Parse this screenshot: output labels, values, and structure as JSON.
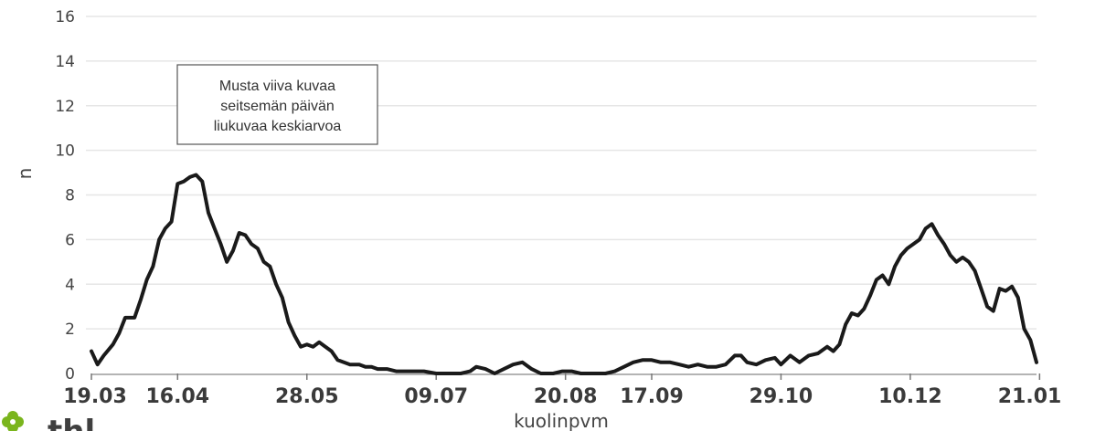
{
  "chart_data": {
    "type": "line",
    "title": "",
    "xlabel": "kuolinpvm",
    "ylabel": "n",
    "ylim": [
      0,
      16
    ],
    "yticks": [
      0,
      2,
      4,
      6,
      8,
      10,
      12,
      14,
      16
    ],
    "grid": true,
    "x_tick_labels": [
      "19.03",
      "16.04",
      "28.05",
      "09.07",
      "20.08",
      "17.09",
      "29.10",
      "10.12",
      "21.01"
    ],
    "annotation": [
      "Musta viiva kuvaa",
      "seitsemän päivän",
      "liukuvaa keskiarvoa"
    ],
    "logo_text": "thl",
    "series": [
      {
        "line_color": "#1a1a1a",
        "points": [
          [
            "19.03",
            1.0
          ],
          [
            "21.03",
            0.4
          ],
          [
            "23.03",
            0.8
          ],
          [
            "26.03",
            1.3
          ],
          [
            "28.03",
            1.8
          ],
          [
            "30.03",
            2.5
          ],
          [
            "02.04",
            2.5
          ],
          [
            "04.04",
            3.3
          ],
          [
            "06.04",
            4.2
          ],
          [
            "08.04",
            4.8
          ],
          [
            "10.04",
            6.0
          ],
          [
            "12.04",
            6.5
          ],
          [
            "14.04",
            6.8
          ],
          [
            "16.04",
            8.5
          ],
          [
            "18.04",
            8.6
          ],
          [
            "20.04",
            8.8
          ],
          [
            "22.04",
            8.9
          ],
          [
            "24.04",
            8.6
          ],
          [
            "26.04",
            7.2
          ],
          [
            "28.04",
            6.5
          ],
          [
            "30.04",
            5.8
          ],
          [
            "02.05",
            5.0
          ],
          [
            "04.05",
            5.5
          ],
          [
            "06.05",
            6.3
          ],
          [
            "08.05",
            6.2
          ],
          [
            "10.05",
            5.8
          ],
          [
            "12.05",
            5.6
          ],
          [
            "14.05",
            5.0
          ],
          [
            "16.05",
            4.8
          ],
          [
            "18.05",
            4.0
          ],
          [
            "20.05",
            3.4
          ],
          [
            "22.05",
            2.3
          ],
          [
            "24.05",
            1.7
          ],
          [
            "26.05",
            1.2
          ],
          [
            "28.05",
            1.3
          ],
          [
            "30.05",
            1.2
          ],
          [
            "01.06",
            1.4
          ],
          [
            "03.06",
            1.2
          ],
          [
            "05.06",
            1.0
          ],
          [
            "07.06",
            0.6
          ],
          [
            "09.06",
            0.5
          ],
          [
            "11.06",
            0.4
          ],
          [
            "14.06",
            0.4
          ],
          [
            "16.06",
            0.3
          ],
          [
            "18.06",
            0.3
          ],
          [
            "20.06",
            0.2
          ],
          [
            "23.06",
            0.2
          ],
          [
            "26.06",
            0.1
          ],
          [
            "29.06",
            0.1
          ],
          [
            "02.07",
            0.1
          ],
          [
            "05.07",
            0.1
          ],
          [
            "09.07",
            0.0
          ],
          [
            "13.07",
            0.0
          ],
          [
            "17.07",
            0.0
          ],
          [
            "20.07",
            0.1
          ],
          [
            "22.07",
            0.3
          ],
          [
            "25.07",
            0.2
          ],
          [
            "28.07",
            0.0
          ],
          [
            "31.07",
            0.2
          ],
          [
            "03.08",
            0.4
          ],
          [
            "06.08",
            0.5
          ],
          [
            "09.08",
            0.2
          ],
          [
            "12.08",
            0.0
          ],
          [
            "16.08",
            0.0
          ],
          [
            "19.08",
            0.1
          ],
          [
            "22.08",
            0.1
          ],
          [
            "25.08",
            0.0
          ],
          [
            "29.08",
            0.0
          ],
          [
            "02.09",
            0.0
          ],
          [
            "05.09",
            0.1
          ],
          [
            "08.09",
            0.3
          ],
          [
            "11.09",
            0.5
          ],
          [
            "14.09",
            0.6
          ],
          [
            "17.09",
            0.6
          ],
          [
            "20.09",
            0.5
          ],
          [
            "23.09",
            0.5
          ],
          [
            "26.09",
            0.4
          ],
          [
            "29.09",
            0.3
          ],
          [
            "02.10",
            0.4
          ],
          [
            "05.10",
            0.3
          ],
          [
            "08.10",
            0.3
          ],
          [
            "11.10",
            0.4
          ],
          [
            "14.10",
            0.8
          ],
          [
            "16.10",
            0.8
          ],
          [
            "18.10",
            0.5
          ],
          [
            "21.10",
            0.4
          ],
          [
            "24.10",
            0.6
          ],
          [
            "27.10",
            0.7
          ],
          [
            "29.10",
            0.4
          ],
          [
            "01.11",
            0.8
          ],
          [
            "04.11",
            0.5
          ],
          [
            "07.11",
            0.8
          ],
          [
            "10.11",
            0.9
          ],
          [
            "13.11",
            1.2
          ],
          [
            "15.11",
            1.0
          ],
          [
            "17.11",
            1.3
          ],
          [
            "19.11",
            2.2
          ],
          [
            "21.11",
            2.7
          ],
          [
            "23.11",
            2.6
          ],
          [
            "25.11",
            2.9
          ],
          [
            "27.11",
            3.5
          ],
          [
            "29.11",
            4.2
          ],
          [
            "01.12",
            4.4
          ],
          [
            "03.12",
            4.0
          ],
          [
            "05.12",
            4.8
          ],
          [
            "07.12",
            5.3
          ],
          [
            "09.12",
            5.6
          ],
          [
            "11.12",
            5.8
          ],
          [
            "13.12",
            6.0
          ],
          [
            "15.12",
            6.5
          ],
          [
            "17.12",
            6.7
          ],
          [
            "19.12",
            6.2
          ],
          [
            "21.12",
            5.8
          ],
          [
            "23.12",
            5.3
          ],
          [
            "25.12",
            5.0
          ],
          [
            "27.12",
            5.2
          ],
          [
            "29.12",
            5.0
          ],
          [
            "31.12",
            4.6
          ],
          [
            "02.01",
            3.8
          ],
          [
            "04.01",
            3.0
          ],
          [
            "06.01",
            2.8
          ],
          [
            "08.01",
            3.8
          ],
          [
            "10.01",
            3.7
          ],
          [
            "12.01",
            3.9
          ],
          [
            "14.01",
            3.4
          ],
          [
            "16.01",
            2.0
          ],
          [
            "18.01",
            1.5
          ],
          [
            "20.01",
            0.5
          ]
        ]
      }
    ]
  }
}
